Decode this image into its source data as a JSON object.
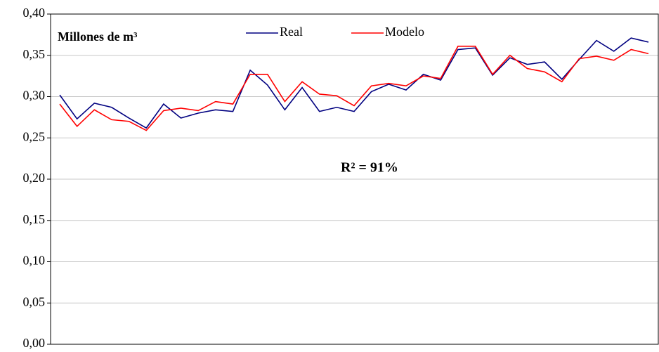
{
  "chart_data": {
    "type": "line",
    "y_label": "Millones de m³",
    "annotation": "R² = 91%",
    "categories": [
      null,
      null,
      null,
      null,
      null,
      null,
      null,
      null,
      null,
      null,
      null,
      null,
      null,
      null,
      null,
      null,
      null,
      null,
      null,
      null,
      null,
      null,
      null,
      null,
      null,
      null,
      null,
      null,
      null,
      null,
      null,
      null,
      null,
      null,
      null
    ],
    "series": [
      {
        "name": "Real",
        "color": "#000080",
        "values": [
          0.302,
          0.273,
          0.292,
          0.287,
          0.274,
          0.262,
          0.291,
          0.274,
          0.28,
          0.284,
          0.282,
          0.332,
          0.314,
          0.284,
          0.311,
          0.282,
          0.287,
          0.282,
          0.306,
          0.315,
          0.308,
          0.327,
          0.32,
          0.357,
          0.359,
          0.326,
          0.347,
          0.339,
          0.342,
          0.321,
          0.345,
          0.368,
          0.355,
          0.371,
          0.366
        ]
      },
      {
        "name": "Modelo",
        "color": "#ff0000",
        "values": [
          0.291,
          0.264,
          0.284,
          0.272,
          0.27,
          0.259,
          0.283,
          0.286,
          0.283,
          0.294,
          0.291,
          0.327,
          0.327,
          0.294,
          0.318,
          0.303,
          0.301,
          0.289,
          0.313,
          0.316,
          0.313,
          0.325,
          0.322,
          0.361,
          0.361,
          0.327,
          0.35,
          0.334,
          0.33,
          0.318,
          0.346,
          0.349,
          0.344,
          0.357,
          0.352
        ]
      }
    ],
    "ylim": [
      0,
      0.4
    ],
    "yticks": [
      {
        "value": 0,
        "label": "0,00"
      },
      {
        "value": 0.05,
        "label": "0,05"
      },
      {
        "value": 0.1,
        "label": "0,10"
      },
      {
        "value": 0.15,
        "label": "0,15"
      },
      {
        "value": 0.2,
        "label": "0,20"
      },
      {
        "value": 0.25,
        "label": "0,25"
      },
      {
        "value": 0.3,
        "label": "0,30"
      },
      {
        "value": 0.35,
        "label": "0,35"
      },
      {
        "value": 0.4,
        "label": "0,40"
      }
    ],
    "grid": true,
    "legend": "top"
  }
}
